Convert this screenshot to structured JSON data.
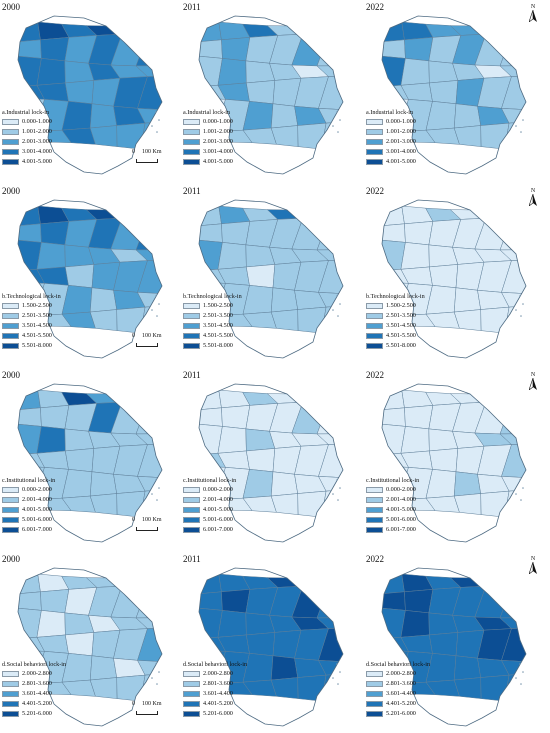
{
  "years": [
    "2000",
    "2011",
    "2022"
  ],
  "scale_labels": {
    "zero": "0",
    "distance": "100 Km"
  },
  "north_label": "N",
  "colors": [
    "#dbebf7",
    "#9fcbe6",
    "#4f9fd1",
    "#1f74b6",
    "#0c4e94"
  ],
  "rows": [
    {
      "title": "a.Industrial  lock-in",
      "classes": [
        "0.000-1.000",
        "1.001-2.000",
        "2.001-3.000",
        "3.001-4.000",
        "4.001-5.000"
      ],
      "levels_by_year": [
        [
          3,
          4,
          3,
          4,
          3,
          3,
          2,
          3,
          2,
          3,
          2,
          3,
          3,
          3,
          2,
          3,
          2,
          2,
          3,
          3,
          2,
          2,
          3,
          3,
          1,
          2,
          3,
          2,
          3,
          2,
          2,
          2,
          3,
          2,
          2,
          2
        ],
        [
          2,
          2,
          3,
          1,
          2,
          1,
          1,
          2,
          1,
          1,
          2,
          1,
          1,
          2,
          1,
          1,
          0,
          1,
          1,
          2,
          1,
          1,
          1,
          1,
          0,
          1,
          2,
          1,
          2,
          1,
          1,
          1,
          1,
          1,
          1,
          1
        ],
        [
          3,
          3,
          2,
          2,
          2,
          1,
          1,
          2,
          1,
          2,
          1,
          1,
          3,
          1,
          1,
          1,
          0,
          1,
          1,
          1,
          1,
          2,
          1,
          1,
          0,
          1,
          1,
          1,
          2,
          1,
          1,
          1,
          1,
          1,
          1,
          1
        ]
      ]
    },
    {
      "title": "b.Technological lock-in",
      "classes": [
        "1.500-2.500",
        "2.501-3.500",
        "3.501-4.500",
        "4.501-5.500",
        "5.501-8.000"
      ],
      "levels_by_year": [
        [
          3,
          4,
          3,
          4,
          2,
          3,
          2,
          3,
          2,
          3,
          2,
          3,
          3,
          2,
          2,
          2,
          1,
          2,
          3,
          3,
          1,
          2,
          2,
          2,
          1,
          1,
          2,
          1,
          2,
          1,
          1,
          1,
          2,
          1,
          1,
          1
        ],
        [
          1,
          2,
          1,
          3,
          1,
          1,
          1,
          1,
          1,
          1,
          1,
          1,
          2,
          1,
          1,
          1,
          1,
          1,
          1,
          1,
          0,
          1,
          1,
          1,
          1,
          1,
          1,
          1,
          1,
          1,
          1,
          1,
          1,
          1,
          1,
          1
        ],
        [
          0,
          0,
          1,
          0,
          0,
          0,
          0,
          0,
          0,
          0,
          0,
          0,
          1,
          0,
          0,
          0,
          0,
          0,
          0,
          0,
          0,
          0,
          0,
          0,
          0,
          0,
          0,
          0,
          0,
          0,
          0,
          0,
          0,
          0,
          0,
          0
        ]
      ]
    },
    {
      "title": "c.Institutional lock-in",
      "classes": [
        "0.000-2.000",
        "2.001-4.000",
        "4.001-5.000",
        "5.001-6.000",
        "6.001-7.000"
      ],
      "levels_by_year": [
        [
          2,
          1,
          4,
          2,
          2,
          1,
          1,
          1,
          1,
          3,
          1,
          1,
          2,
          3,
          1,
          1,
          1,
          1,
          1,
          1,
          1,
          1,
          1,
          1,
          1,
          1,
          1,
          1,
          1,
          1,
          1,
          1,
          1,
          1,
          1,
          1
        ],
        [
          0,
          0,
          1,
          0,
          0,
          0,
          0,
          0,
          0,
          0,
          1,
          0,
          0,
          0,
          1,
          0,
          0,
          0,
          1,
          0,
          0,
          0,
          0,
          0,
          0,
          0,
          1,
          0,
          0,
          0,
          0,
          0,
          0,
          0,
          0,
          0
        ],
        [
          0,
          0,
          0,
          0,
          0,
          0,
          0,
          0,
          0,
          0,
          0,
          1,
          0,
          0,
          0,
          0,
          1,
          1,
          0,
          0,
          0,
          0,
          0,
          1,
          0,
          0,
          0,
          1,
          0,
          0,
          0,
          0,
          0,
          0,
          0,
          0
        ]
      ]
    },
    {
      "title": "d.Social behaviorl lock-in",
      "classes": [
        "2.000-2.800",
        "2.801-3.600",
        "3.601-4.400",
        "4.401-5.200",
        "5.201-6.000"
      ],
      "levels_by_year": [
        [
          1,
          0,
          1,
          1,
          0,
          1,
          1,
          1,
          0,
          1,
          1,
          1,
          1,
          0,
          1,
          0,
          1,
          1,
          1,
          1,
          0,
          1,
          1,
          2,
          1,
          1,
          1,
          1,
          0,
          1,
          1,
          1,
          1,
          1,
          1,
          1
        ],
        [
          3,
          3,
          3,
          4,
          3,
          3,
          3,
          4,
          3,
          3,
          4,
          3,
          3,
          3,
          3,
          3,
          4,
          3,
          3,
          3,
          3,
          3,
          3,
          4,
          3,
          3,
          3,
          4,
          3,
          3,
          2,
          3,
          3,
          3,
          3,
          3
        ],
        [
          3,
          4,
          3,
          4,
          3,
          3,
          4,
          4,
          3,
          3,
          3,
          3,
          3,
          4,
          3,
          3,
          4,
          3,
          3,
          3,
          3,
          3,
          4,
          4,
          3,
          3,
          3,
          3,
          3,
          3,
          3,
          3,
          3,
          3,
          3,
          3
        ]
      ]
    }
  ]
}
